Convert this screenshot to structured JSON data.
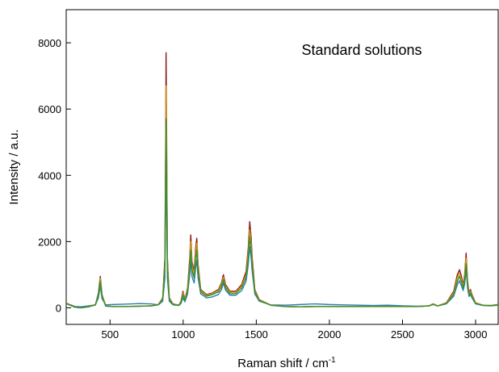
{
  "chart_data": {
    "type": "line",
    "annotation": "Standard solutions",
    "xlabel": {
      "text": "Raman shift / cm",
      "sup": "-1"
    },
    "ylabel": "Intensity / a.u.",
    "xlim": [
      200,
      3160
    ],
    "ylim": [
      -500,
      9000
    ],
    "xticks": [
      500,
      1000,
      1500,
      2000,
      2500,
      3000
    ],
    "yticks": [
      0,
      2000,
      4000,
      6000,
      8000
    ],
    "grid": false,
    "legend": "none",
    "x": [
      200,
      230,
      260,
      300,
      350,
      400,
      420,
      433,
      445,
      470,
      520,
      600,
      700,
      780,
      830,
      860,
      875,
      880,
      883,
      887,
      892,
      905,
      930,
      970,
      985,
      998,
      1012,
      1030,
      1045,
      1052,
      1060,
      1075,
      1085,
      1093,
      1102,
      1120,
      1160,
      1200,
      1240,
      1262,
      1275,
      1290,
      1320,
      1360,
      1400,
      1430,
      1445,
      1455,
      1465,
      1472,
      1480,
      1490,
      1520,
      1600,
      1700,
      1800,
      1900,
      2000,
      2100,
      2200,
      2300,
      2400,
      2500,
      2600,
      2680,
      2710,
      2740,
      2800,
      2850,
      2875,
      2890,
      2900,
      2915,
      2925,
      2935,
      2945,
      2955,
      2965,
      2975,
      3000,
      3050,
      3100,
      3160
    ],
    "series": [
      {
        "color": "#8b1a1a",
        "values": [
          150,
          80,
          20,
          0,
          30,
          100,
          450,
          950,
          400,
          60,
          40,
          40,
          50,
          60,
          100,
          300,
          1500,
          5000,
          7700,
          5000,
          1500,
          300,
          120,
          80,
          200,
          500,
          250,
          600,
          1500,
          2200,
          1400,
          1100,
          1800,
          2100,
          1300,
          550,
          400,
          450,
          550,
          750,
          1000,
          700,
          500,
          500,
          700,
          1100,
          1800,
          2600,
          2100,
          1500,
          1100,
          550,
          250,
          80,
          40,
          30,
          40,
          40,
          40,
          40,
          40,
          40,
          40,
          40,
          60,
          120,
          60,
          150,
          500,
          1000,
          1150,
          1000,
          700,
          1000,
          1650,
          800,
          450,
          550,
          400,
          150,
          80,
          70,
          100
        ]
      },
      {
        "color": "#d4a017",
        "values": [
          140,
          75,
          20,
          0,
          30,
          95,
          420,
          890,
          380,
          55,
          40,
          40,
          50,
          60,
          95,
          280,
          1350,
          4500,
          6700,
          4500,
          1350,
          280,
          110,
          80,
          180,
          450,
          230,
          560,
          1350,
          2000,
          1300,
          1000,
          1650,
          1950,
          1200,
          520,
          380,
          430,
          520,
          700,
          920,
          650,
          470,
          470,
          650,
          1000,
          1650,
          2350,
          1900,
          1350,
          1000,
          520,
          240,
          80,
          40,
          30,
          40,
          40,
          40,
          40,
          40,
          40,
          40,
          40,
          60,
          110,
          60,
          140,
          450,
          900,
          1050,
          900,
          650,
          920,
          1500,
          740,
          420,
          500,
          370,
          140,
          80,
          70,
          95
        ]
      },
      {
        "color": "#3a8f2e",
        "values": [
          130,
          70,
          18,
          0,
          28,
          85,
          380,
          810,
          350,
          50,
          38,
          38,
          48,
          58,
          88,
          250,
          1200,
          4000,
          5700,
          4000,
          1200,
          250,
          100,
          75,
          160,
          400,
          210,
          500,
          1200,
          1750,
          1150,
          900,
          1450,
          1750,
          1100,
          480,
          350,
          400,
          480,
          640,
          850,
          600,
          430,
          430,
          600,
          920,
          1500,
          2150,
          1750,
          1250,
          920,
          480,
          220,
          75,
          38,
          28,
          38,
          38,
          38,
          38,
          38,
          38,
          38,
          38,
          55,
          100,
          55,
          130,
          400,
          800,
          950,
          820,
          600,
          830,
          1330,
          680,
          390,
          460,
          340,
          130,
          75,
          65,
          90
        ]
      },
      {
        "color": "#2a7fb0",
        "values": [
          120,
          90,
          40,
          30,
          60,
          90,
          300,
          650,
          280,
          90,
          100,
          110,
          130,
          120,
          90,
          200,
          900,
          3000,
          4300,
          3000,
          900,
          200,
          90,
          70,
          130,
          300,
          180,
          420,
          1000,
          1450,
          950,
          750,
          1200,
          1450,
          900,
          420,
          300,
          330,
          400,
          550,
          750,
          530,
          380,
          380,
          520,
          800,
          1300,
          1850,
          1500,
          1100,
          800,
          420,
          200,
          90,
          80,
          100,
          120,
          100,
          90,
          80,
          70,
          80,
          60,
          50,
          60,
          110,
          60,
          120,
          350,
          700,
          820,
          700,
          520,
          720,
          1150,
          600,
          340,
          400,
          300,
          120,
          70,
          60,
          80
        ]
      }
    ]
  }
}
